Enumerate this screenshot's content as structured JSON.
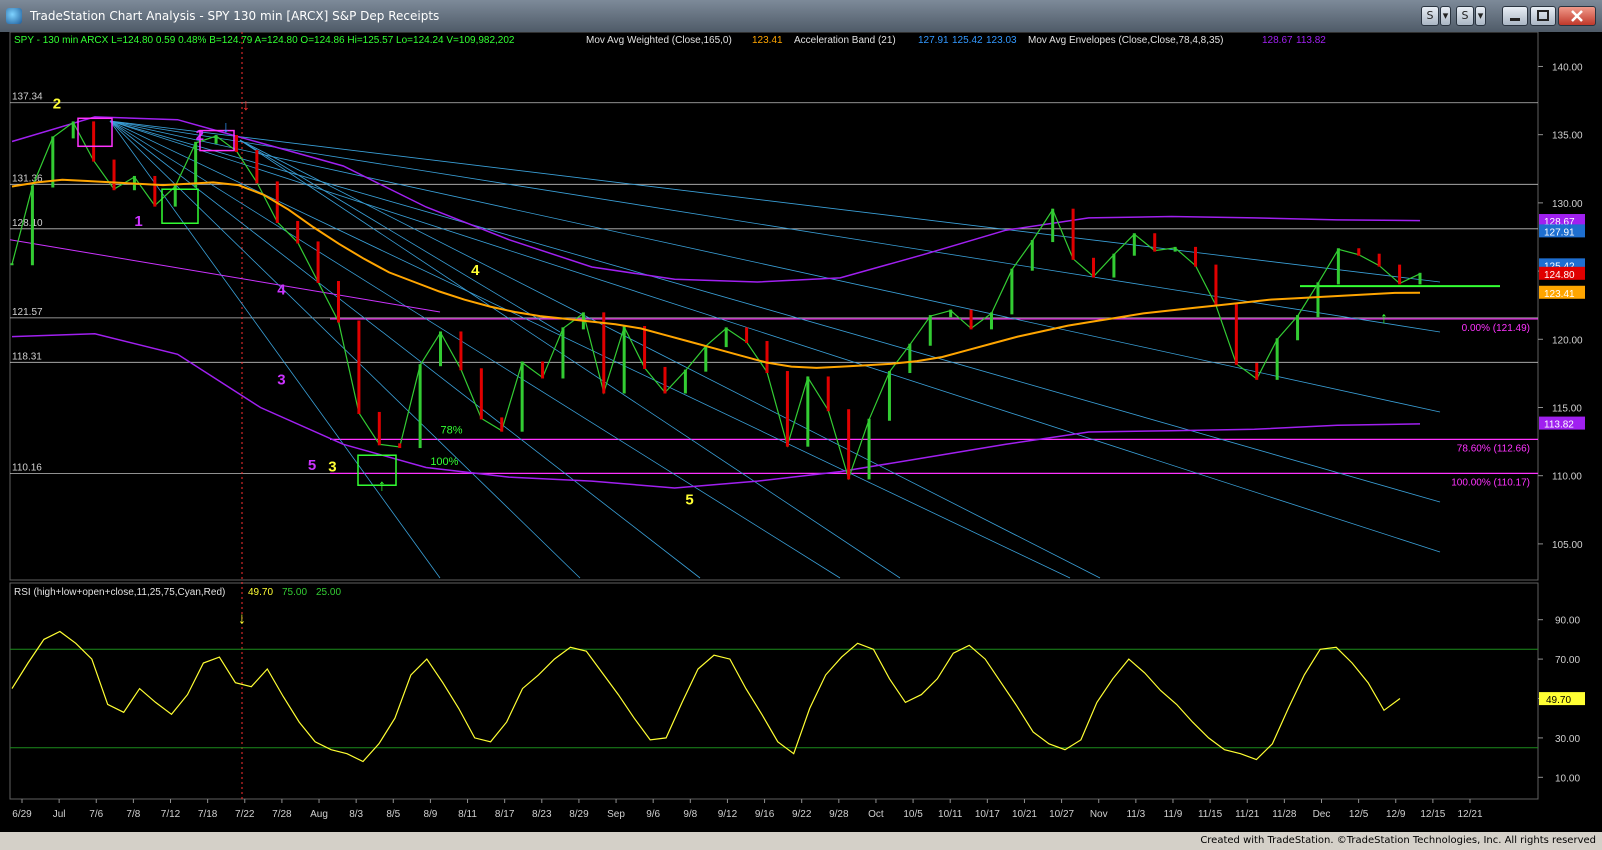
{
  "window": {
    "title": "TradeStation Chart Analysis - SPY 130 min [ARCX] S&P Dep Receipts",
    "buttons": [
      "S",
      "▾",
      "S",
      "▾"
    ]
  },
  "header": {
    "symbol_line": "SPY - 130 min  ARCX  L=124.80  0.59  0.48%  B=124.79  A=124.80  O=124.86  Hi=125.57  Lo=124.24  V=109,982,202",
    "indicators": [
      {
        "label": "Mov Avg Weighted (Close,165,0)",
        "values": [
          "123.41"
        ],
        "color": "#ffa500"
      },
      {
        "label": "Acceleration Band (21)",
        "values": [
          "127.91",
          "125.42",
          "123.03"
        ],
        "color": "#3399ff"
      },
      {
        "label": "Mov Avg Envelopes (Close,Close,78,4,8,35)",
        "values": [
          "128.67",
          "113.82"
        ],
        "color": "#a020f0"
      }
    ]
  },
  "rsi_header": {
    "label": "RSI (high+low+open+close,11,25,75,Cyan,Red)",
    "value": "49.70",
    "overbought": "75.00",
    "oversold": "25.00"
  },
  "footer": {
    "text": "Created with TradeStation. ©TradeStation Technologies, Inc. All rights reserved"
  },
  "chart_data": [
    {
      "type": "line",
      "title": "SPY - 130 min",
      "y_axis_ticks": [
        105,
        110,
        115,
        120,
        125,
        130,
        135,
        140
      ],
      "ylim": [
        102.5,
        141.5
      ],
      "x_tick_labels": [
        "6/29",
        "Jul",
        "7/6",
        "7/8",
        "7/12",
        "7/18",
        "7/22",
        "7/28",
        "Aug",
        "8/3",
        "8/5",
        "8/9",
        "8/11",
        "8/17",
        "8/23",
        "8/29",
        "Sep",
        "9/6",
        "9/8",
        "9/12",
        "9/16",
        "9/22",
        "9/28",
        "Oct",
        "10/5",
        "10/11",
        "10/17",
        "10/21",
        "10/27",
        "Nov",
        "11/3",
        "11/9",
        "11/15",
        "11/21",
        "11/28",
        "Dec",
        "12/5",
        "12/9",
        "12/15",
        "12/21"
      ],
      "horizontal_levels": [
        {
          "value": 137.34,
          "label": "137.34",
          "color": "#c0c0c0"
        },
        {
          "value": 131.36,
          "label": "131.36",
          "color": "#c0c0c0"
        },
        {
          "value": 128.1,
          "label": "128.10",
          "color": "#c0c0c0"
        },
        {
          "value": 121.57,
          "label": "121.57",
          "color": "#c0c0c0"
        },
        {
          "value": 118.31,
          "label": "118.31",
          "color": "#c0c0c0"
        },
        {
          "value": 110.16,
          "label": "110.16",
          "color": "#c0c0c0"
        }
      ],
      "fib_levels": [
        {
          "value": 121.49,
          "label": "0.00% (121.49)",
          "color": "#ff33ff"
        },
        {
          "value": 112.66,
          "label": "78.60% (112.66)",
          "color": "#ff33ff"
        },
        {
          "value": 110.17,
          "label": "100.00% (110.17)",
          "color": "#ff33ff"
        }
      ],
      "price_badges": [
        {
          "value": 128.67,
          "label": "128.67",
          "color": "#a020f0"
        },
        {
          "value": 127.91,
          "label": "127.91",
          "color": "#1e6fd0"
        },
        {
          "value": 125.42,
          "label": "125.42",
          "color": "#1e6fd0"
        },
        {
          "value": 124.8,
          "label": "124.80",
          "color": "#e00000"
        },
        {
          "value": 123.41,
          "label": "123.41",
          "color": "#ffa500"
        },
        {
          "value": 113.82,
          "label": "113.82",
          "color": "#a020f0"
        }
      ],
      "wave_labels": [
        {
          "text": "2",
          "x": 2,
          "y": 136.9,
          "color": "#ffff33"
        },
        {
          "text": "1",
          "x": 6,
          "y": 128.3,
          "color": "#cc33ff"
        },
        {
          "text": "2",
          "x": 9,
          "y": 134.6,
          "color": "#cc33ff"
        },
        {
          "text": "4",
          "x": 13,
          "y": 123.3,
          "color": "#cc33ff"
        },
        {
          "text": "3",
          "x": 13,
          "y": 116.7,
          "color": "#cc33ff"
        },
        {
          "text": "5",
          "x": 14.5,
          "y": 110.4,
          "color": "#cc33ff"
        },
        {
          "text": "3",
          "x": 15.5,
          "y": 110.3,
          "color": "#ffff33"
        },
        {
          "text": "4",
          "x": 22.5,
          "y": 124.7,
          "color": "#ffff33"
        },
        {
          "text": "5",
          "x": 33,
          "y": 107.9,
          "color": "#ffff33"
        }
      ],
      "pct_labels": [
        {
          "text": "78%",
          "x": 21,
          "y": 113.1,
          "color": "#33ff33"
        },
        {
          "text": "100%",
          "x": 20.5,
          "y": 110.8,
          "color": "#33ff33"
        }
      ],
      "series": [
        {
          "name": "SPY",
          "color": "#33cc33",
          "values": [
            125.5,
            131.2,
            134.8,
            135.9,
            133.1,
            131.0,
            131.9,
            129.8,
            131.2,
            134.4,
            134.9,
            133.8,
            131.5,
            128.6,
            127.1,
            124.2,
            121.3,
            114.6,
            112.3,
            112.1,
            118.1,
            120.5,
            117.8,
            114.2,
            113.3,
            118.3,
            117.2,
            120.8,
            121.9,
            116.1,
            120.9,
            117.9,
            116.1,
            117.7,
            119.5,
            120.8,
            119.8,
            117.6,
            112.2,
            117.2,
            114.8,
            109.8,
            114.1,
            117.6,
            119.6,
            121.7,
            122.1,
            120.8,
            121.9,
            125.1,
            127.2,
            129.5,
            125.9,
            124.6,
            126.2,
            127.7,
            126.5,
            126.7,
            125.4,
            122.5,
            118.2,
            117.1,
            120.0,
            121.7,
            124.1,
            126.6,
            126.2,
            125.4,
            124.1,
            124.8
          ]
        },
        {
          "name": "Mov Avg Weighted (Close,165,0)",
          "color": "#ffa500",
          "values": [
            131.2,
            131.5,
            131.7,
            131.6,
            131.5,
            131.4,
            131.3,
            131.4,
            131.5,
            131.3,
            130.6,
            129.5,
            128.2,
            127.0,
            125.9,
            124.9,
            124.2,
            123.5,
            122.9,
            122.4,
            122.0,
            121.7,
            121.5,
            121.3,
            121.1,
            120.8,
            120.3,
            119.8,
            119.3,
            118.8,
            118.3,
            118.0,
            117.9,
            118.0,
            118.1,
            118.2,
            118.4,
            118.7,
            119.2,
            119.7,
            120.2,
            120.6,
            121.0,
            121.3,
            121.6,
            121.9,
            122.1,
            122.3,
            122.5,
            122.7,
            122.9,
            123.0,
            123.1,
            123.2,
            123.3,
            123.4,
            123.41
          ]
        }
      ]
    },
    {
      "type": "line",
      "title": "RSI (high+low+open+close,11,25,75,Cyan,Red)",
      "y_axis_ticks": [
        10,
        30,
        50,
        70,
        90
      ],
      "ylim": [
        0,
        100
      ],
      "reference_lines": [
        75,
        25
      ],
      "series": [
        {
          "name": "RSI",
          "color": "#ffff33",
          "values": [
            55,
            68,
            80,
            84,
            78,
            70,
            47,
            43,
            55,
            48,
            42,
            52,
            68,
            71,
            58,
            56,
            65,
            51,
            38,
            28,
            24,
            22,
            18,
            27,
            40,
            62,
            70,
            58,
            45,
            30,
            28,
            38,
            55,
            62,
            70,
            76,
            74,
            63,
            52,
            40,
            29,
            30,
            48,
            65,
            72,
            70,
            55,
            42,
            28,
            22,
            45,
            62,
            71,
            78,
            75,
            60,
            48,
            52,
            60,
            73,
            77,
            70,
            58,
            46,
            33,
            27,
            24,
            29,
            48,
            60,
            70,
            63,
            54,
            47,
            38,
            30,
            24,
            22,
            19,
            27,
            45,
            62,
            75,
            76,
            68,
            58,
            44,
            50
          ]
        }
      ]
    }
  ]
}
